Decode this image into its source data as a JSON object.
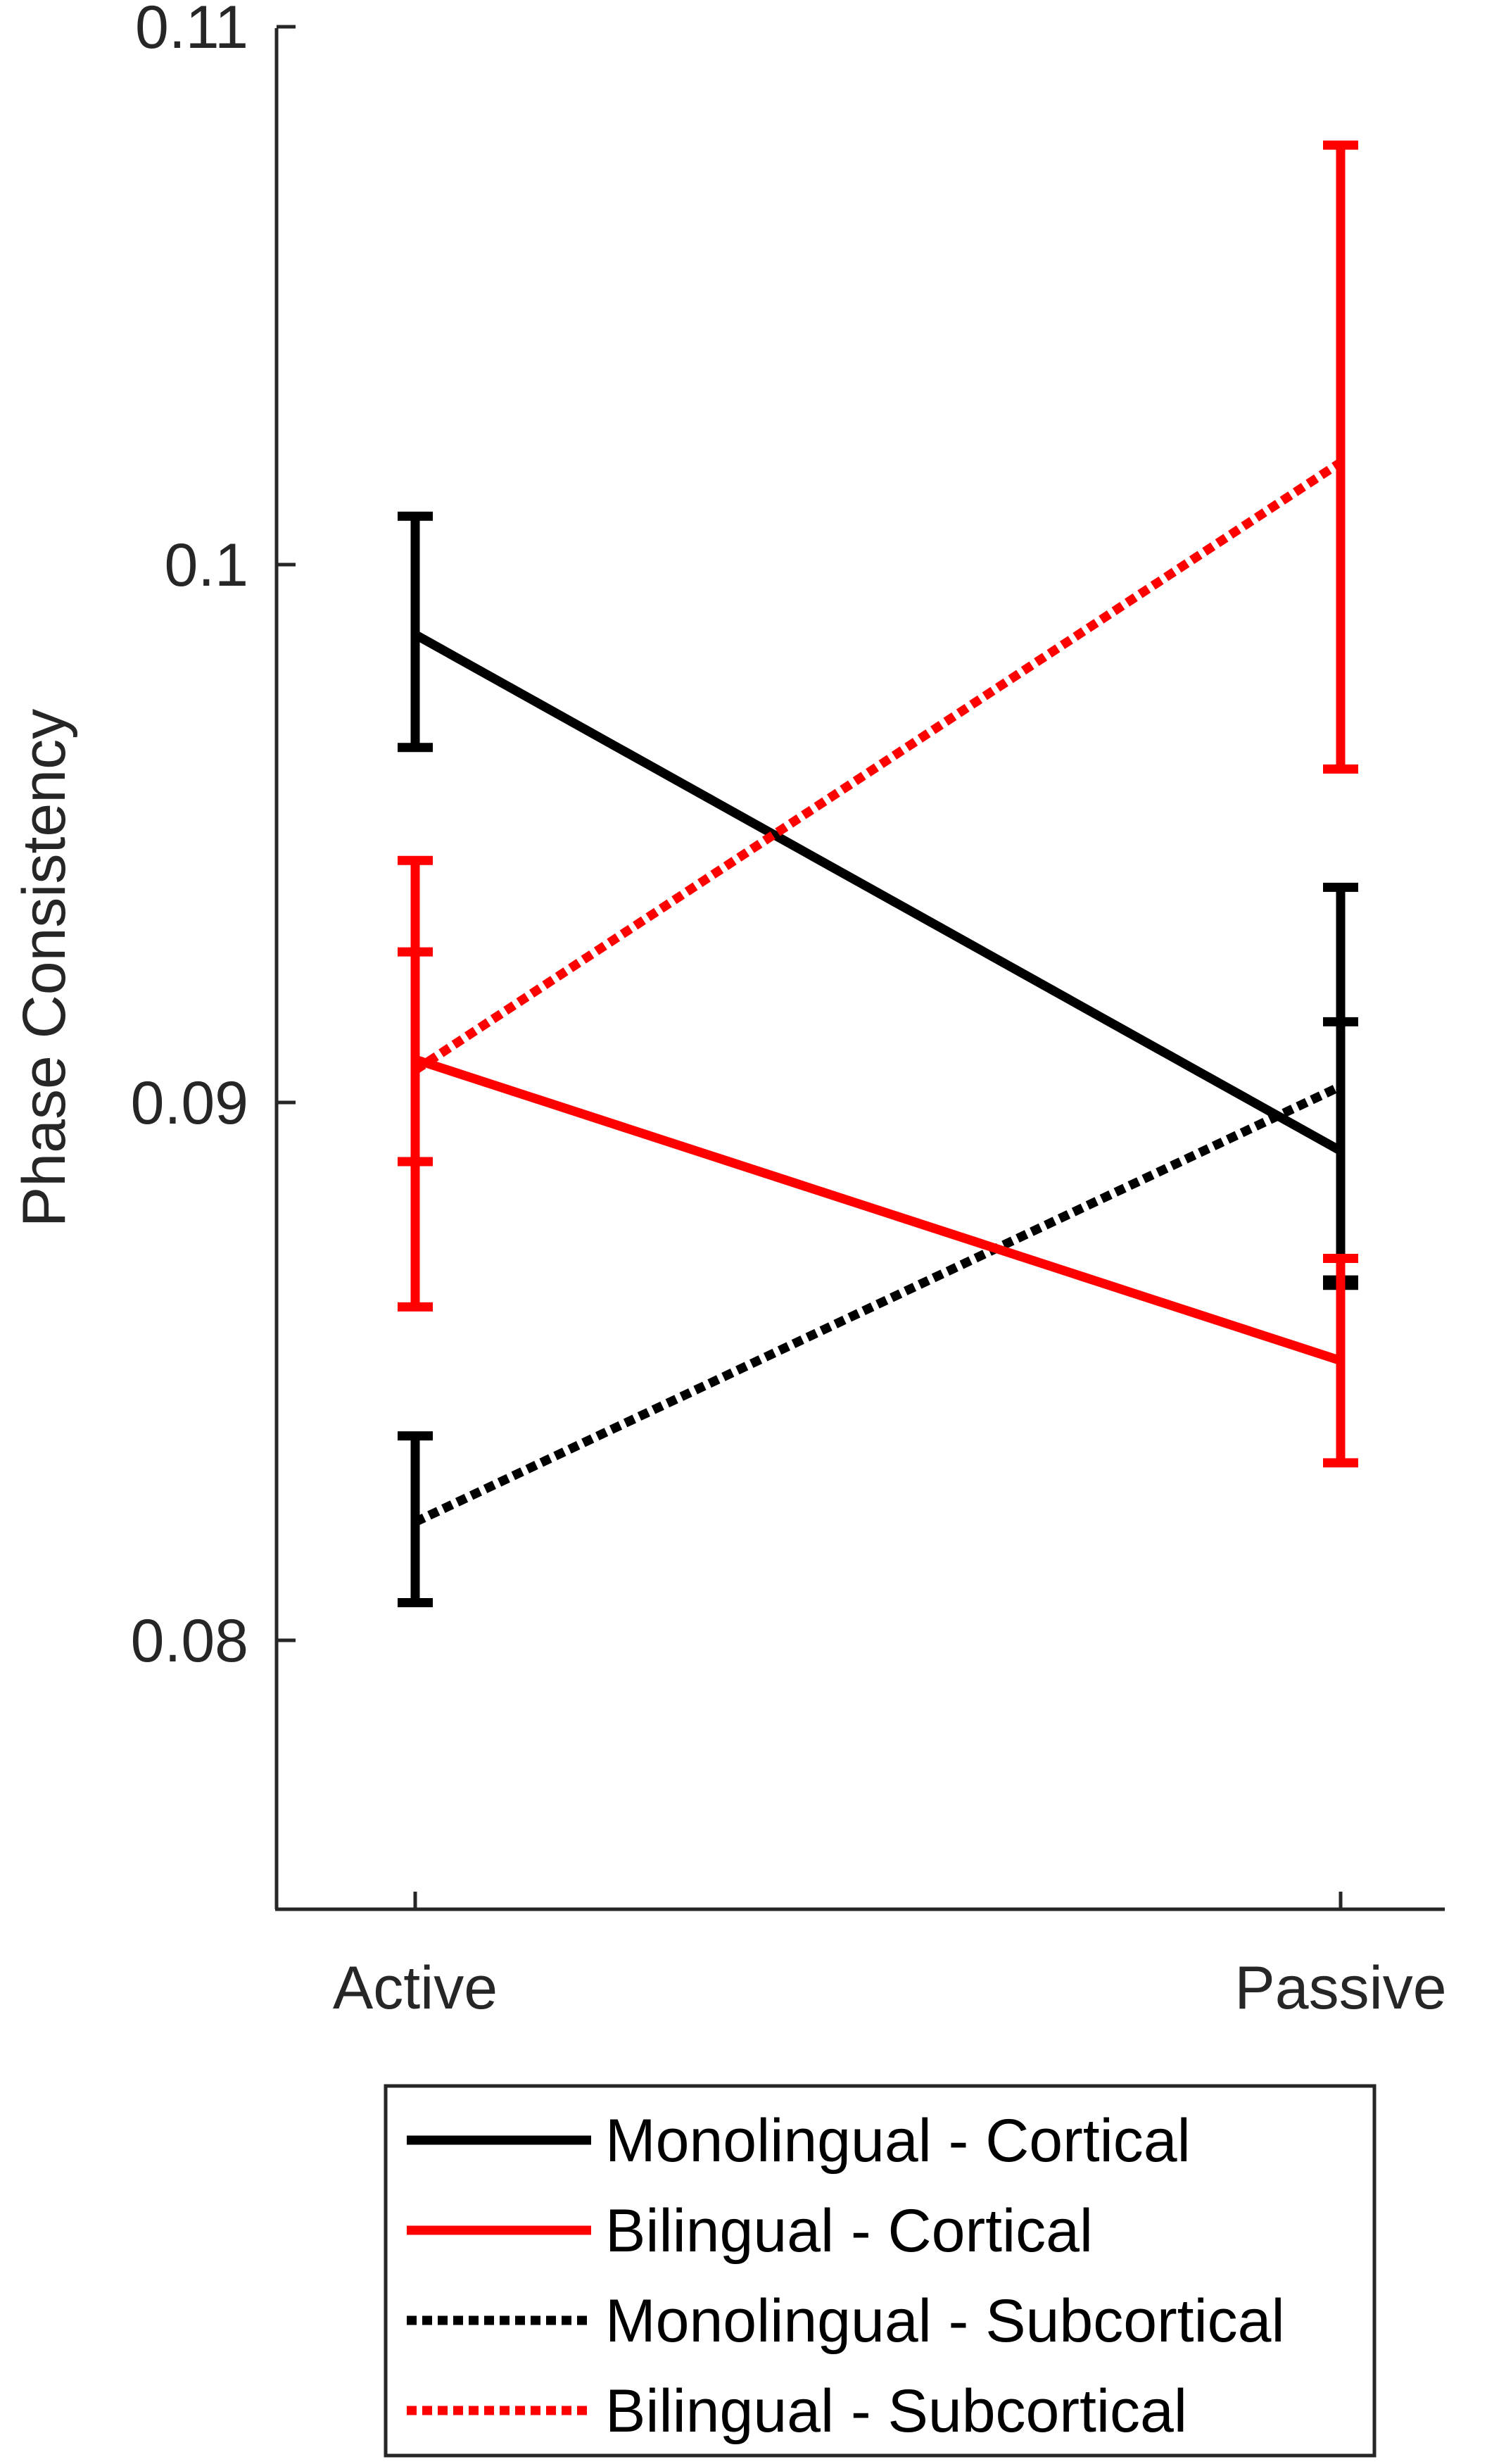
{
  "chart_data": {
    "type": "line",
    "title": "",
    "xlabel": "",
    "ylabel": "Phase Consistency",
    "ylim": [
      0.075,
      0.11
    ],
    "yticks": [
      0.08,
      0.09,
      0.1,
      0.11
    ],
    "ytick_labels": [
      "0.08",
      "0.09",
      "0.1",
      "0.11"
    ],
    "categories": [
      "Active",
      "Passive"
    ],
    "grid": false,
    "legend_position": "bottom",
    "series": [
      {
        "name": "Monolingual - Cortical",
        "color": "#000000",
        "dash": "solid",
        "values": [
          0.0987,
          0.0891
        ],
        "error_low": [
          0.0966,
          0.0866
        ],
        "error_high": [
          0.1009,
          0.0915
        ]
      },
      {
        "name": "Bilingual - Cortical",
        "color": "#ff0000",
        "dash": "solid",
        "values": [
          0.0908,
          0.0852
        ],
        "error_low": [
          0.0889,
          0.0833
        ],
        "error_high": [
          0.0928,
          0.0871
        ]
      },
      {
        "name": "Monolingual - Subcortical",
        "color": "#000000",
        "dash": "dotted",
        "values": [
          0.0822,
          0.0903
        ],
        "error_low": [
          0.0807,
          0.0867
        ],
        "error_high": [
          0.0838,
          0.094
        ]
      },
      {
        "name": "Bilingual - Subcortical",
        "color": "#ff0000",
        "dash": "dotted",
        "values": [
          0.0906,
          0.1019
        ],
        "error_low": [
          0.0862,
          0.0962
        ],
        "error_high": [
          0.0945,
          0.1078
        ]
      }
    ]
  }
}
